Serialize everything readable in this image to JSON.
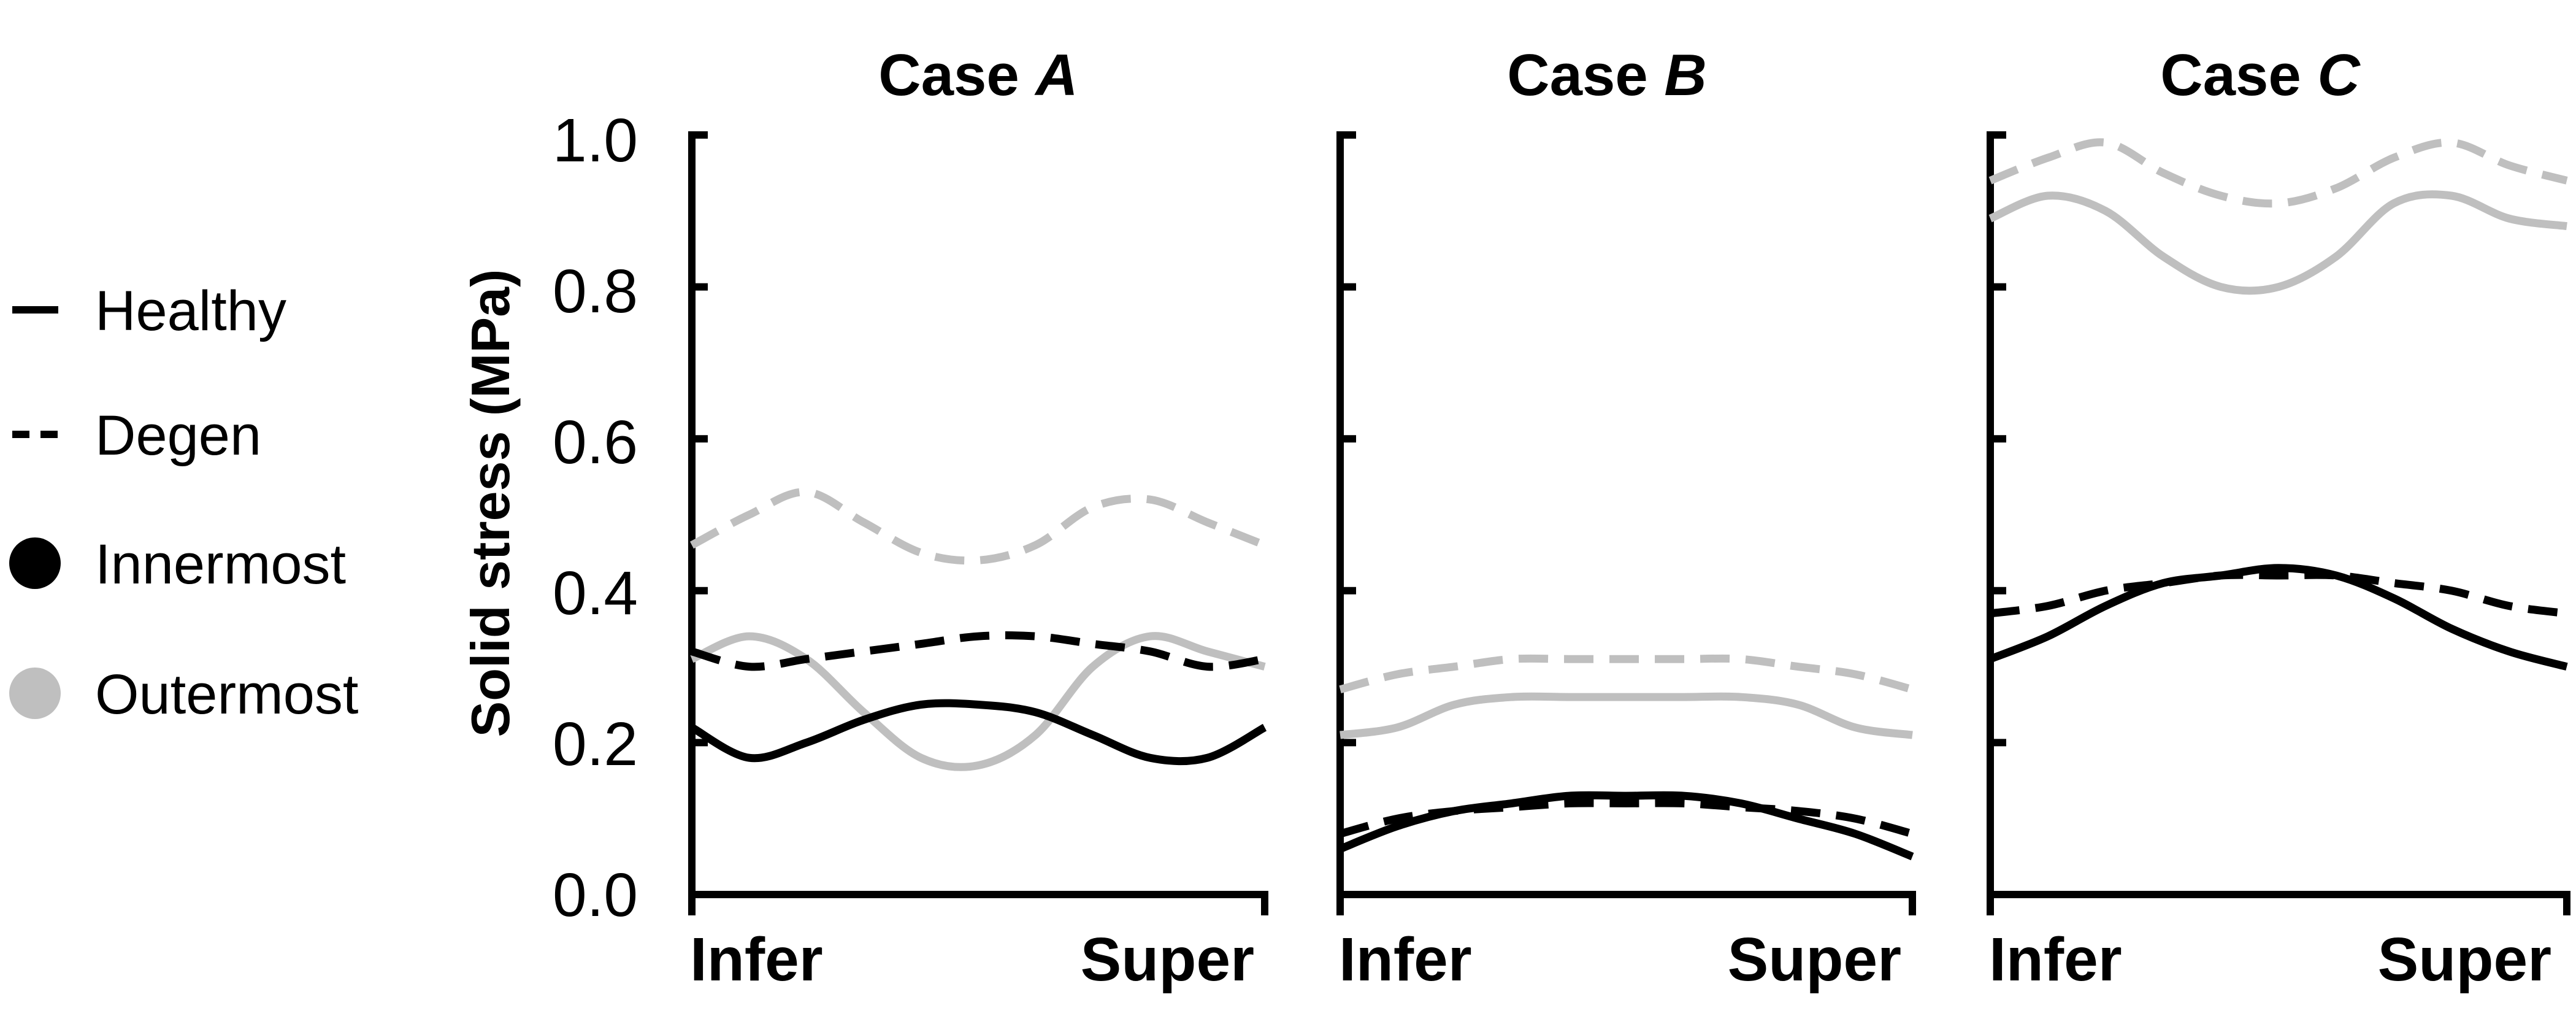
{
  "legend": {
    "items": [
      {
        "label": "Healthy",
        "symbol": "solid-line"
      },
      {
        "label": "Degen",
        "symbol": "dashed-line"
      },
      {
        "label": "Innermost",
        "symbol": "dot",
        "color": "#000000"
      },
      {
        "label": "Outermost",
        "symbol": "dot",
        "color": "#bfbfbf"
      }
    ]
  },
  "colors": {
    "innermost": "#000000",
    "outermost": "#bfbfbf"
  },
  "chart_data": [
    {
      "type": "line",
      "title_prefix": "Case ",
      "title_letter": "A",
      "ylabel": "Solid stress (MPa)",
      "ylim": [
        0,
        1.0
      ],
      "yticks": [
        "0.0",
        "0.2",
        "0.4",
        "0.6",
        "0.8",
        "1.0"
      ],
      "x_labels": [
        "Infer",
        "Super"
      ],
      "x": [
        0,
        0.1,
        0.2,
        0.3,
        0.4,
        0.5,
        0.6,
        0.7,
        0.8,
        0.9,
        1.0
      ],
      "series": [
        {
          "layer": "outermost",
          "condition": "degen",
          "values": [
            0.46,
            0.5,
            0.53,
            0.49,
            0.45,
            0.44,
            0.46,
            0.51,
            0.52,
            0.49,
            0.46
          ]
        },
        {
          "layer": "outermost",
          "condition": "healthy",
          "values": [
            0.31,
            0.34,
            0.31,
            0.24,
            0.18,
            0.17,
            0.21,
            0.3,
            0.34,
            0.32,
            0.3
          ]
        },
        {
          "layer": "innermost",
          "condition": "degen",
          "values": [
            0.32,
            0.3,
            0.31,
            0.32,
            0.33,
            0.34,
            0.34,
            0.33,
            0.32,
            0.3,
            0.31
          ]
        },
        {
          "layer": "innermost",
          "condition": "healthy",
          "values": [
            0.22,
            0.18,
            0.2,
            0.23,
            0.25,
            0.25,
            0.24,
            0.21,
            0.18,
            0.18,
            0.22
          ]
        }
      ]
    },
    {
      "type": "line",
      "title_prefix": "Case ",
      "title_letter": "B",
      "ylim": [
        0,
        1.0
      ],
      "x_labels": [
        "Infer",
        "Super"
      ],
      "x": [
        0,
        0.1,
        0.2,
        0.3,
        0.4,
        0.5,
        0.6,
        0.7,
        0.8,
        0.9,
        1.0
      ],
      "series": [
        {
          "layer": "outermost",
          "condition": "degen",
          "values": [
            0.27,
            0.29,
            0.3,
            0.31,
            0.31,
            0.31,
            0.31,
            0.31,
            0.3,
            0.29,
            0.27
          ]
        },
        {
          "layer": "outermost",
          "condition": "healthy",
          "values": [
            0.21,
            0.22,
            0.25,
            0.26,
            0.26,
            0.26,
            0.26,
            0.26,
            0.25,
            0.22,
            0.21
          ]
        },
        {
          "layer": "innermost",
          "condition": "degen",
          "values": [
            0.08,
            0.1,
            0.11,
            0.115,
            0.12,
            0.12,
            0.12,
            0.115,
            0.11,
            0.1,
            0.08
          ]
        },
        {
          "layer": "innermost",
          "condition": "healthy",
          "values": [
            0.06,
            0.09,
            0.11,
            0.12,
            0.13,
            0.13,
            0.13,
            0.12,
            0.1,
            0.08,
            0.05
          ]
        }
      ]
    },
    {
      "type": "line",
      "title_prefix": "Case ",
      "title_letter": "C",
      "ylim": [
        0,
        1.0
      ],
      "x_labels": [
        "Infer",
        "Super"
      ],
      "x": [
        0,
        0.1,
        0.2,
        0.3,
        0.4,
        0.5,
        0.6,
        0.7,
        0.8,
        0.9,
        1.0
      ],
      "series": [
        {
          "layer": "outermost",
          "condition": "degen",
          "values": [
            0.94,
            0.97,
            0.99,
            0.95,
            0.92,
            0.91,
            0.93,
            0.97,
            0.99,
            0.96,
            0.94
          ]
        },
        {
          "layer": "outermost",
          "condition": "healthy",
          "values": [
            0.89,
            0.92,
            0.9,
            0.84,
            0.8,
            0.8,
            0.84,
            0.91,
            0.92,
            0.89,
            0.88
          ]
        },
        {
          "layer": "innermost",
          "condition": "degen",
          "values": [
            0.37,
            0.38,
            0.4,
            0.41,
            0.42,
            0.42,
            0.42,
            0.41,
            0.4,
            0.38,
            0.37
          ]
        },
        {
          "layer": "innermost",
          "condition": "healthy",
          "values": [
            0.31,
            0.34,
            0.38,
            0.41,
            0.42,
            0.43,
            0.42,
            0.39,
            0.35,
            0.32,
            0.3
          ]
        }
      ]
    }
  ]
}
